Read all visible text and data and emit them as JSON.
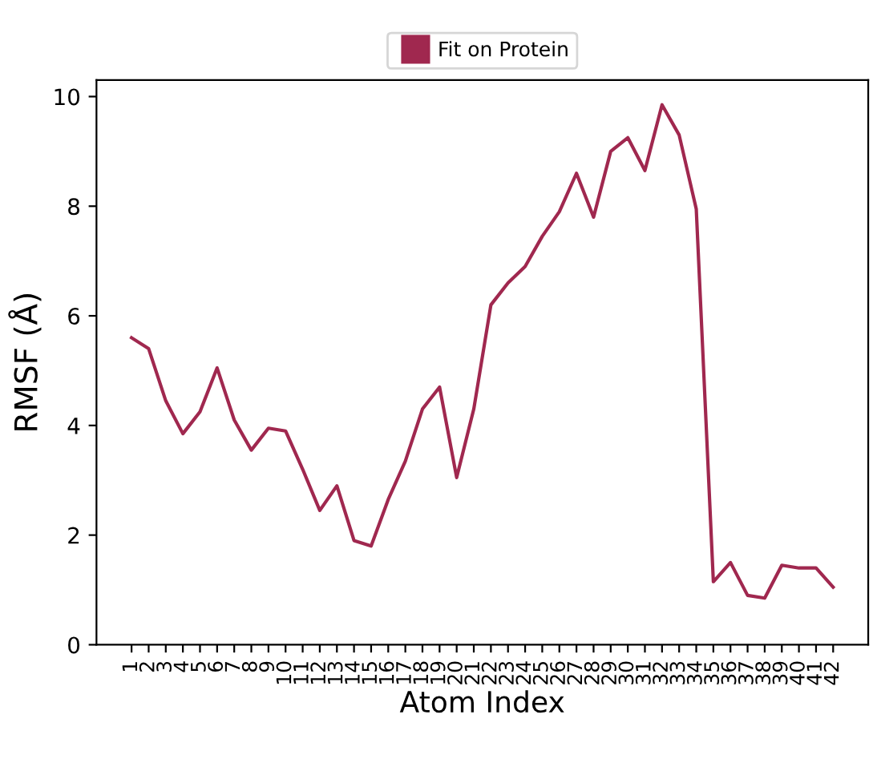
{
  "chart_data": {
    "type": "line",
    "xlabel": "Atom Index",
    "ylabel": "RMSF (Å)",
    "categories": [
      "1",
      "2",
      "3",
      "4",
      "5",
      "6",
      "7",
      "8",
      "9",
      "10",
      "11",
      "12",
      "13",
      "14",
      "15",
      "16",
      "17",
      "18",
      "19",
      "20",
      "21",
      "22",
      "23",
      "24",
      "25",
      "26",
      "27",
      "28",
      "29",
      "30",
      "31",
      "32",
      "33",
      "34",
      "35",
      "36",
      "37",
      "38",
      "39",
      "40",
      "41",
      "42"
    ],
    "series": [
      {
        "name": "Fit on Protein",
        "color": "#a0284f",
        "values": [
          5.6,
          5.4,
          4.45,
          3.85,
          4.25,
          5.05,
          4.1,
          3.55,
          3.95,
          3.9,
          3.2,
          2.45,
          2.9,
          1.9,
          1.8,
          2.65,
          3.35,
          4.3,
          4.7,
          3.05,
          4.3,
          6.2,
          6.6,
          6.9,
          7.45,
          7.9,
          8.6,
          7.8,
          9.0,
          9.25,
          8.65,
          9.85,
          9.3,
          7.95,
          1.15,
          1.5,
          0.9,
          0.85,
          1.45,
          1.4,
          1.4,
          1.05
        ]
      }
    ],
    "ylim": [
      0,
      10.3
    ],
    "yticks": [
      0,
      2,
      4,
      6,
      8,
      10
    ],
    "legend": "top",
    "grid": false,
    "marker": "none",
    "line_style": "solid"
  }
}
